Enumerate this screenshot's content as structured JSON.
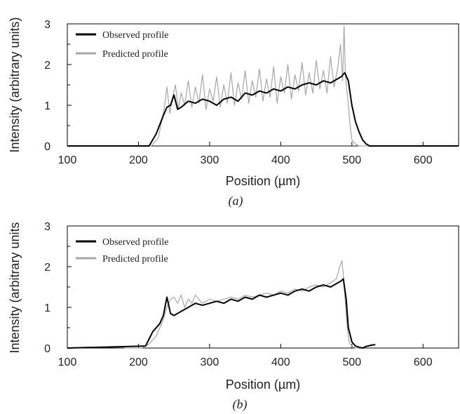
{
  "figure": {
    "panel_labels": [
      "(a)",
      "(b)"
    ]
  },
  "chart_data": [
    {
      "type": "line",
      "panel": "(a)",
      "xlabel": "Position (µm)",
      "ylabel": "Intensity (arbitrary units)",
      "xlim": [
        100,
        650
      ],
      "ylim": [
        0,
        3
      ],
      "xticks": [
        "100",
        "200",
        "300",
        "400",
        "500",
        "600"
      ],
      "yticks": [
        "0",
        "1",
        "2",
        "3"
      ],
      "legend_position": "top-left",
      "grid": false,
      "series": [
        {
          "name": "Observed profile",
          "color": "#000000",
          "x": [
            100,
            215,
            225,
            235,
            240,
            245,
            250,
            255,
            260,
            270,
            280,
            290,
            300,
            310,
            320,
            330,
            340,
            350,
            360,
            370,
            380,
            390,
            400,
            410,
            420,
            430,
            440,
            450,
            460,
            470,
            480,
            485,
            490,
            495,
            500,
            505,
            510,
            515,
            520,
            525,
            650
          ],
          "y": [
            0,
            0,
            0.3,
            0.75,
            0.95,
            1.0,
            1.25,
            0.9,
            0.95,
            1.1,
            1.05,
            1.15,
            1.1,
            1.0,
            1.15,
            1.2,
            1.1,
            1.3,
            1.25,
            1.35,
            1.3,
            1.4,
            1.35,
            1.45,
            1.4,
            1.5,
            1.55,
            1.5,
            1.6,
            1.55,
            1.65,
            1.7,
            1.8,
            1.6,
            1.0,
            0.6,
            0.35,
            0.15,
            0.05,
            0,
            0
          ]
        },
        {
          "name": "Predicted profile",
          "color": "#a6a6a6",
          "x": [
            100,
            218,
            228,
            236,
            240,
            244,
            248,
            252,
            256,
            260,
            265,
            270,
            275,
            280,
            285,
            290,
            295,
            300,
            305,
            310,
            315,
            320,
            325,
            330,
            335,
            340,
            345,
            350,
            355,
            360,
            365,
            370,
            375,
            380,
            385,
            390,
            395,
            400,
            405,
            410,
            415,
            420,
            425,
            430,
            435,
            440,
            445,
            450,
            455,
            460,
            465,
            470,
            475,
            480,
            484,
            487,
            489,
            491,
            494,
            497,
            500,
            505,
            510,
            520,
            650
          ],
          "y": [
            0,
            0,
            0.2,
            0.9,
            1.45,
            0.8,
            1.2,
            1.5,
            0.9,
            1.3,
            1.0,
            1.6,
            0.95,
            1.45,
            1.05,
            1.75,
            0.9,
            1.4,
            1.1,
            1.7,
            0.95,
            1.5,
            1.05,
            1.8,
            1.0,
            1.55,
            1.15,
            1.85,
            1.05,
            1.6,
            1.2,
            1.9,
            1.1,
            1.65,
            1.2,
            1.95,
            1.05,
            1.7,
            1.3,
            2.0,
            1.15,
            1.75,
            1.35,
            2.05,
            1.25,
            1.8,
            1.3,
            2.1,
            1.4,
            1.85,
            1.3,
            2.2,
            1.45,
            1.9,
            2.5,
            1.6,
            2.95,
            1.7,
            1.2,
            0.6,
            0.15,
            0.05,
            0,
            0,
            0
          ]
        }
      ]
    },
    {
      "type": "line",
      "panel": "(b)",
      "xlabel": "Position (µm)",
      "ylabel": "Intensity (arbitrary units",
      "xlim": [
        100,
        650
      ],
      "ylim": [
        0,
        3
      ],
      "xticks": [
        "100",
        "200",
        "300",
        "400",
        "500",
        "600"
      ],
      "yticks": [
        "0",
        "1",
        "2",
        "3"
      ],
      "legend_position": "top-left",
      "grid": false,
      "series": [
        {
          "name": "Observed profile",
          "color": "#000000",
          "x": [
            100,
            210,
            220,
            230,
            235,
            240,
            245,
            250,
            260,
            270,
            280,
            290,
            300,
            310,
            320,
            330,
            340,
            350,
            360,
            370,
            380,
            390,
            400,
            410,
            420,
            430,
            440,
            450,
            460,
            470,
            480,
            485,
            488,
            492,
            495,
            500,
            505,
            510,
            515,
            520,
            525,
            530,
            533
          ],
          "y": [
            0,
            0.05,
            0.4,
            0.6,
            0.8,
            1.25,
            0.85,
            0.8,
            0.9,
            1.0,
            1.1,
            1.05,
            1.1,
            1.15,
            1.1,
            1.2,
            1.15,
            1.25,
            1.2,
            1.3,
            1.25,
            1.3,
            1.35,
            1.3,
            1.4,
            1.45,
            1.4,
            1.5,
            1.55,
            1.5,
            1.6,
            1.65,
            1.7,
            1.2,
            0.5,
            0.15,
            0.05,
            0.02,
            0.0,
            0.04,
            0.06,
            0.08,
            0.08
          ]
        },
        {
          "name": "Predicted profile",
          "color": "#a6a6a6",
          "x": [
            180,
            205,
            215,
            225,
            235,
            240,
            245,
            250,
            255,
            260,
            265,
            270,
            275,
            280,
            290,
            300,
            310,
            320,
            330,
            340,
            350,
            360,
            370,
            380,
            390,
            400,
            410,
            420,
            430,
            440,
            450,
            460,
            470,
            478,
            483,
            486,
            488,
            490,
            493,
            496,
            500,
            505,
            510
          ],
          "y": [
            0,
            0,
            0.1,
            0.3,
            0.7,
            1.0,
            1.2,
            1.25,
            1.1,
            1.3,
            1.0,
            1.2,
            1.1,
            1.3,
            1.1,
            1.2,
            1.15,
            1.2,
            1.25,
            1.2,
            1.3,
            1.25,
            1.3,
            1.35,
            1.3,
            1.4,
            1.35,
            1.45,
            1.4,
            1.5,
            1.55,
            1.5,
            1.6,
            1.7,
            2.0,
            2.15,
            1.8,
            1.3,
            0.6,
            0.15,
            0.05,
            0,
            0
          ]
        }
      ]
    }
  ]
}
